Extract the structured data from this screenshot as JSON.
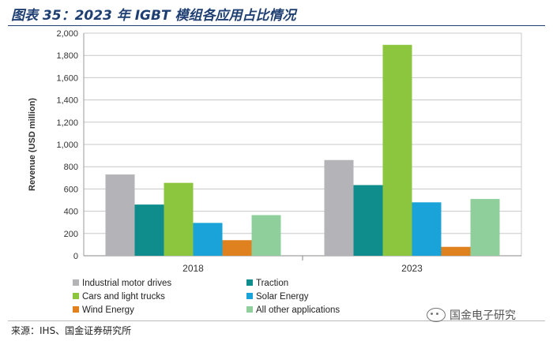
{
  "figure": {
    "title": "图表 35：2023 年 IGBT 模组各应用占比情况",
    "source": "来源：IHS、国金证券研究所",
    "watermark": "国金电子研究"
  },
  "chart_data": {
    "type": "bar",
    "title": "",
    "xlabel": "",
    "ylabel": "Revenue (USD million)",
    "ylim": [
      0,
      2000
    ],
    "yticks": [
      0,
      200,
      400,
      600,
      800,
      1000,
      1200,
      1400,
      1600,
      1800,
      2000
    ],
    "ytick_labels": [
      "0",
      "200",
      "400",
      "600",
      "800",
      "1,000",
      "1,200",
      "1,400",
      "1,600",
      "1,800",
      "2,000"
    ],
    "categories": [
      "2018",
      "2023"
    ],
    "grid": true,
    "legend_position": "bottom",
    "series": [
      {
        "name": "Industrial motor drives",
        "color": "#b3b3b8",
        "values": [
          730,
          860
        ]
      },
      {
        "name": "Traction",
        "color": "#0f8c8c",
        "values": [
          460,
          635
        ]
      },
      {
        "name": "Cars and light trucks",
        "color": "#8cc63f",
        "values": [
          655,
          1895
        ]
      },
      {
        "name": "Solar Energy",
        "color": "#1aa3d9",
        "values": [
          295,
          480
        ]
      },
      {
        "name": "Wind Energy",
        "color": "#e0811f",
        "values": [
          140,
          80
        ]
      },
      {
        "name": "All other applications",
        "color": "#8fcf9c",
        "values": [
          365,
          510
        ]
      }
    ]
  }
}
